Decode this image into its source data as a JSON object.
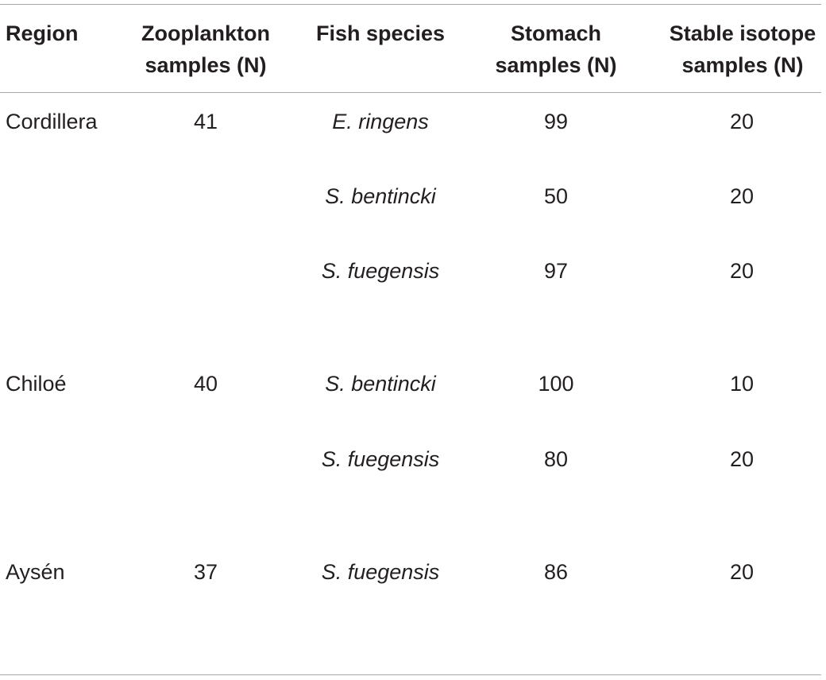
{
  "table": {
    "headers": {
      "region": [
        "Region"
      ],
      "zooplankton": [
        "Zooplankton",
        "samples (N)"
      ],
      "fish_species": [
        "Fish species"
      ],
      "stomach": [
        "Stomach",
        "samples (N)"
      ],
      "isotope": [
        "Stable isotope",
        "samples (N)"
      ]
    },
    "rows": [
      {
        "region": "Cordillera",
        "zooplankton": "41",
        "species": "E. ringens",
        "stomach": "99",
        "isotope": "20"
      },
      {
        "region": "",
        "zooplankton": "",
        "species": "S. bentincki",
        "stomach": "50",
        "isotope": "20"
      },
      {
        "region": "",
        "zooplankton": "",
        "species": "S. fuegensis",
        "stomach": "97",
        "isotope": "20"
      },
      {
        "region": "Chiloé",
        "zooplankton": "40",
        "species": "S. bentincki",
        "stomach": "100",
        "isotope": "10"
      },
      {
        "region": "",
        "zooplankton": "",
        "species": "S. fuegensis",
        "stomach": "80",
        "isotope": "20"
      },
      {
        "region": "Aysén",
        "zooplankton": "37",
        "species": "S. fuegensis",
        "stomach": "86",
        "isotope": "20"
      }
    ]
  }
}
